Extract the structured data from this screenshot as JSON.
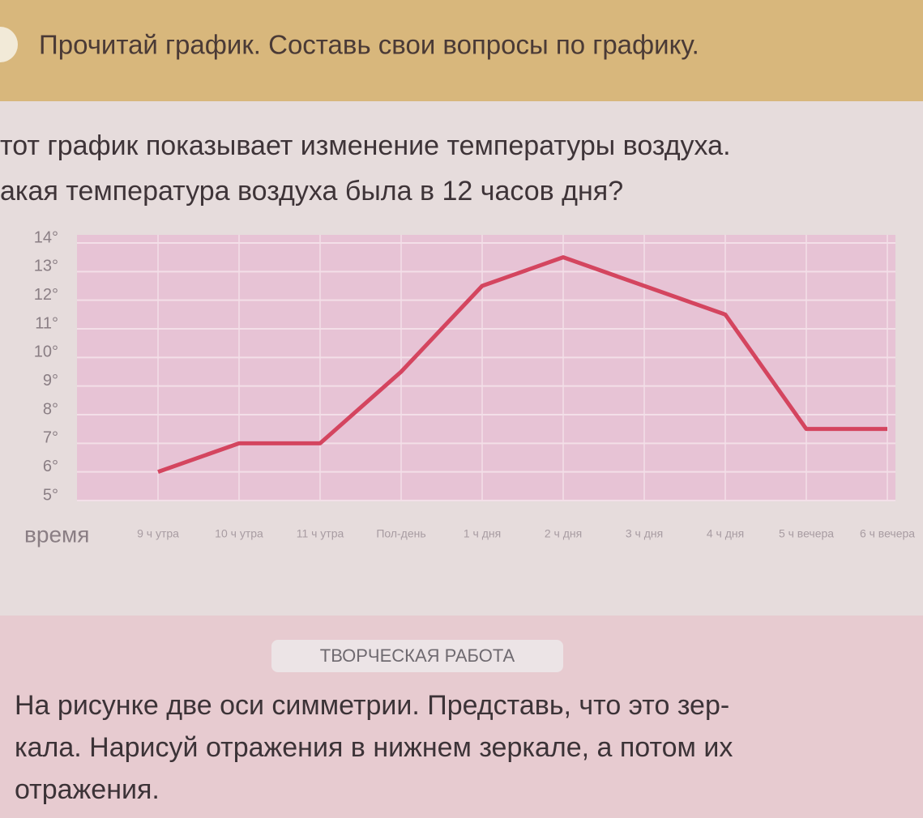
{
  "header": {
    "title": "Прочитай график. Составь свои вопросы по графику."
  },
  "paragraph": [
    "тот график показывает изменение температуры воздуха.",
    "акая температура воздуха была в 12 часов дня?"
  ],
  "chart_data": {
    "type": "line",
    "x_label": "время",
    "categories": [
      "9 ч утра",
      "10 ч утра",
      "11 ч утра",
      "Пол-день",
      "1 ч дня",
      "2 ч дня",
      "3 ч дня",
      "4 ч дня",
      "5 ч вечера",
      "6 ч вечера"
    ],
    "series": [
      {
        "color": "#d4455f",
        "values": [
          6,
          7,
          7,
          9.5,
          12.5,
          13.5,
          12.5,
          11.5,
          7.5,
          7.5
        ]
      }
    ],
    "ylim": [
      5,
      14
    ],
    "yticks": [
      {
        "value": 5,
        "label": "5°"
      },
      {
        "value": 6,
        "label": "6°"
      },
      {
        "value": 7,
        "label": "7°"
      },
      {
        "value": 8,
        "label": "8°"
      },
      {
        "value": 9,
        "label": "9°"
      },
      {
        "value": 10,
        "label": "10°"
      },
      {
        "value": 11,
        "label": "11°"
      },
      {
        "value": 12,
        "label": "12°"
      },
      {
        "value": 13,
        "label": "13°"
      },
      {
        "value": 14,
        "label": "14°"
      }
    ],
    "grid": true
  },
  "section": {
    "label": "ТВОРЧЕСКАЯ РАБОТА",
    "lines": [
      "На рисунке две оси симметрии. Представь, что это зер-",
      "кала. Нарисуй отражения в нижнем зеркале, а потом их",
      "отражения."
    ]
  }
}
